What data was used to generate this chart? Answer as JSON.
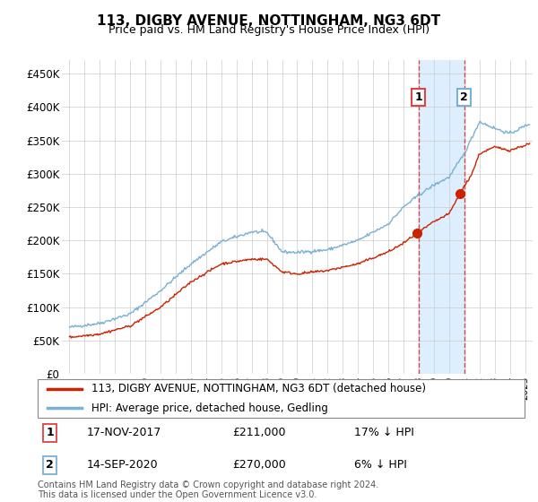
{
  "title": "113, DIGBY AVENUE, NOTTINGHAM, NG3 6DT",
  "subtitle": "Price paid vs. HM Land Registry's House Price Index (HPI)",
  "ylabel_ticks": [
    "£0",
    "£50K",
    "£100K",
    "£150K",
    "£200K",
    "£250K",
    "£300K",
    "£350K",
    "£400K",
    "£450K"
  ],
  "ytick_values": [
    0,
    50000,
    100000,
    150000,
    200000,
    250000,
    300000,
    350000,
    400000,
    450000
  ],
  "ylim": [
    0,
    470000
  ],
  "xlim_start": 1994.5,
  "xlim_end": 2025.5,
  "legend_line1": "113, DIGBY AVENUE, NOTTINGHAM, NG3 6DT (detached house)",
  "legend_line2": "HPI: Average price, detached house, Gedling",
  "annotation1_label": "1",
  "annotation1_date": "17-NOV-2017",
  "annotation1_price": "£211,000",
  "annotation1_hpi": "17% ↓ HPI",
  "annotation2_label": "2",
  "annotation2_date": "14-SEP-2020",
  "annotation2_price": "£270,000",
  "annotation2_hpi": "6% ↓ HPI",
  "footnote": "Contains HM Land Registry data © Crown copyright and database right 2024.\nThis data is licensed under the Open Government Licence v3.0.",
  "hpi_color": "#7ab0d4",
  "price_color": "#cc2200",
  "highlight_fill": "#ddeeff",
  "highlight_border": "#dd4444",
  "point1_year": 2017.88,
  "point1_value": 211000,
  "point2_year": 2020.71,
  "point2_value": 270000,
  "highlight_x1": 2018.0,
  "highlight_x2": 2021.0
}
